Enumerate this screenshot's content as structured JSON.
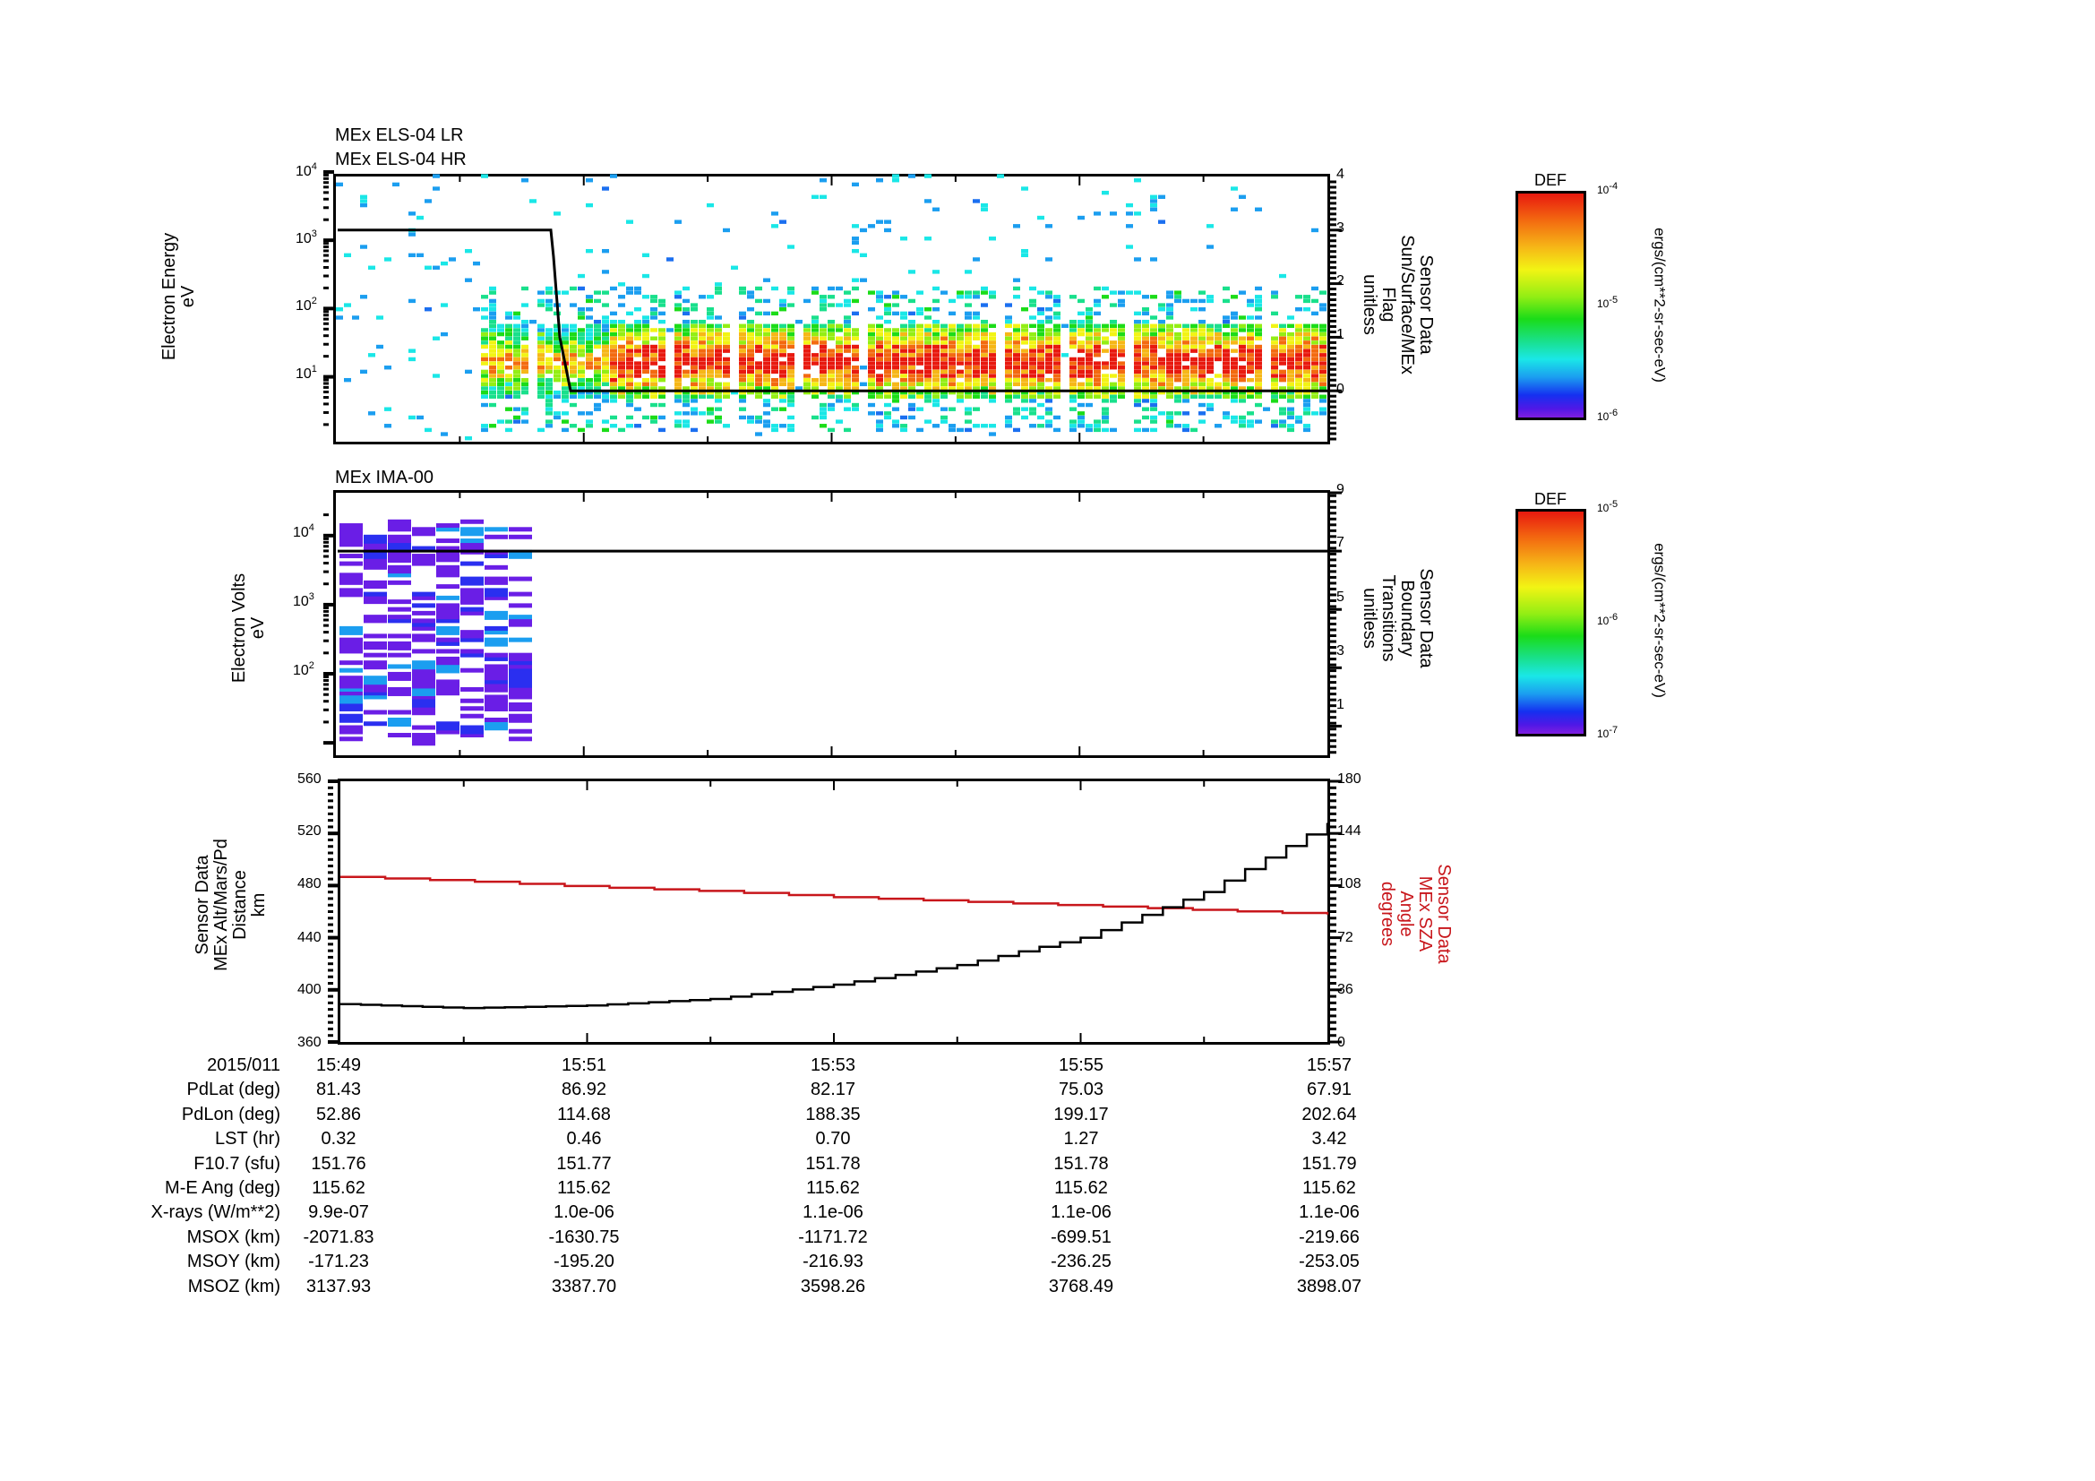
{
  "panels": {
    "els": {
      "titles": [
        "MEx ELS-04 LR",
        "MEx ELS-04 HR"
      ],
      "ylabel": [
        "Electron Energy",
        "eV"
      ],
      "yticks": [
        "10^4",
        "10^3",
        "10^2",
        "10^1"
      ],
      "y2label": [
        "Sensor Data",
        "Sun/Surface/MEx",
        "Flag",
        "unitless"
      ],
      "y2ticks": [
        "4",
        "3",
        "2",
        "1",
        "0"
      ],
      "colorbar": {
        "title": "DEF",
        "max": "10^-4",
        "mid": "10^-5",
        "min": "10^-6",
        "units": "ergs/(cm**2-sr-sec-eV)"
      }
    },
    "ima": {
      "title": "MEx IMA-00",
      "ylabel": [
        "Electron Volts",
        "eV"
      ],
      "yticks": [
        "10^4",
        "10^3",
        "10^2"
      ],
      "y2label": [
        "Sensor Data",
        "Boundary",
        "Transitions",
        "unitless"
      ],
      "y2ticks": [
        "9",
        "7",
        "5",
        "3",
        "1"
      ],
      "colorbar": {
        "title": "DEF",
        "max": "10^-5",
        "mid": "10^-6",
        "min": "10^-7",
        "units": "ergs/(cm**2-sr-sec-eV)"
      }
    },
    "orbit": {
      "ylabel": [
        "Sensor Data",
        "MEx Alt/Mars/Pd",
        "Distance",
        "km"
      ],
      "yticks": [
        "560",
        "520",
        "480",
        "440",
        "400",
        "360"
      ],
      "y2label": [
        "Sensor Data",
        "MEx SZA",
        "Angle",
        "degrees"
      ],
      "y2ticks": [
        "180",
        "144",
        "108",
        "72",
        "36",
        "0"
      ]
    }
  },
  "table": {
    "rows": [
      {
        "label": "2015/011",
        "values": [
          "15:49",
          "15:51",
          "15:53",
          "15:55",
          "15:57"
        ]
      },
      {
        "label": "PdLat (deg)",
        "values": [
          "81.43",
          "86.92",
          "82.17",
          "75.03",
          "67.91"
        ]
      },
      {
        "label": "PdLon (deg)",
        "values": [
          "52.86",
          "114.68",
          "188.35",
          "199.17",
          "202.64"
        ]
      },
      {
        "label": "LST (hr)",
        "values": [
          "0.32",
          "0.46",
          "0.70",
          "1.27",
          "3.42"
        ]
      },
      {
        "label": "F10.7 (sfu)",
        "values": [
          "151.76",
          "151.77",
          "151.78",
          "151.78",
          "151.79"
        ]
      },
      {
        "label": "M-E Ang (deg)",
        "values": [
          "115.62",
          "115.62",
          "115.62",
          "115.62",
          "115.62"
        ]
      },
      {
        "label": "X-rays (W/m**2)",
        "values": [
          "9.9e-07",
          "1.0e-06",
          "1.1e-06",
          "1.1e-06",
          "1.1e-06"
        ]
      },
      {
        "label": "MSOX (km)",
        "values": [
          "-2071.83",
          "-1630.75",
          "-1171.72",
          "-699.51",
          "-219.66"
        ]
      },
      {
        "label": "MSOY (km)",
        "values": [
          "-171.23",
          "-195.20",
          "-216.93",
          "-236.25",
          "-253.05"
        ]
      },
      {
        "label": "MSOZ (km)",
        "values": [
          "3137.93",
          "3387.70",
          "3598.26",
          "3768.49",
          "3898.07"
        ]
      }
    ]
  },
  "chart_data": [
    {
      "type": "heatmap",
      "title": "MEx ELS-04 LR / MEx ELS-04 HR",
      "xlabel": "UT 2015/011",
      "ylabel": "Electron Energy (eV)",
      "yscale": "log",
      "ylim": [
        1,
        10000
      ],
      "x": [
        "15:49",
        "15:51",
        "15:53",
        "15:55",
        "15:57"
      ],
      "colorbar": {
        "label": "DEF ergs/(cm**2-sr-sec-eV)",
        "range": [
          1e-06,
          0.0001
        ]
      },
      "description": "Electron spectrogram; sparse counts before ~15:49:50, intense band 5-60 eV peaking near 15-20 eV (red) from ~15:50 onwards",
      "overlay": {
        "name": "Sensor Data Sun/Surface/MEx Flag (unitless)",
        "y2lim": [
          -1,
          4
        ],
        "points": [
          [
            "15:49",
            3
          ],
          [
            "15:50:10",
            3
          ],
          [
            "15:50:20",
            0
          ],
          [
            "15:57",
            0
          ]
        ]
      }
    },
    {
      "type": "heatmap",
      "title": "MEx IMA-00",
      "xlabel": "UT 2015/011",
      "ylabel": "Electron Volts (eV)",
      "yscale": "log",
      "ylim": [
        10,
        30000
      ],
      "colorbar": {
        "label": "DEF ergs/(cm**2-sr-sec-eV)",
        "range": [
          1e-07,
          1e-05
        ]
      },
      "description": "Sparse low-level (purple/blue) counts only from 15:49 to ~15:50:05",
      "overlay": {
        "name": "Sensor Data Boundary Transitions (unitless)",
        "y2lim": [
          0,
          9
        ],
        "points": [
          [
            "15:49",
            7
          ],
          [
            "15:57",
            7
          ]
        ]
      }
    },
    {
      "type": "line",
      "xlabel": "UT 2015/011",
      "x": [
        "15:49",
        "15:50",
        "15:51",
        "15:52",
        "15:53",
        "15:54",
        "15:55",
        "15:56",
        "15:57"
      ],
      "series": [
        {
          "name": "MEx Alt/Mars/Pd Distance (km)",
          "axis": "left",
          "color": "#000000",
          "values": [
            389,
            386,
            388,
            393,
            404,
            419,
            440,
            475,
            528
          ]
        },
        {
          "name": "MEx SZA Angle (degrees)",
          "axis": "right",
          "color": "#c8161b",
          "values": [
            114,
            111,
            107,
            104,
            100,
            97,
            94,
            91,
            88
          ]
        }
      ],
      "ylim": [
        360,
        560
      ],
      "y2lim": [
        0,
        180
      ],
      "yticks": [
        360,
        400,
        440,
        480,
        520,
        560
      ],
      "y2ticks": [
        0,
        36,
        72,
        108,
        144,
        180
      ]
    }
  ]
}
